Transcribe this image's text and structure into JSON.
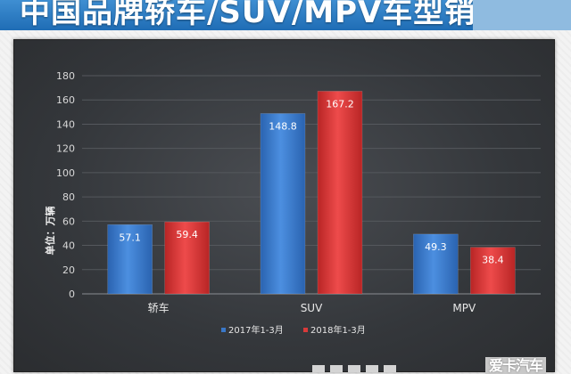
{
  "header": {
    "title": "中国品牌轿车/SUV/MPV车型销量"
  },
  "logo": {
    "text": "爱卡汽车"
  },
  "colors": {
    "series1": "#3a78c8",
    "series2": "#d83a3a",
    "banner": "#2a7bc4",
    "panel": "#3b3e42"
  },
  "chart_data": {
    "type": "bar",
    "title": "",
    "xlabel": "",
    "ylabel": "单位：万辆",
    "ylim": [
      0,
      180
    ],
    "yticks": [
      0,
      20,
      40,
      60,
      80,
      100,
      120,
      140,
      160,
      180
    ],
    "categories": [
      "轿车",
      "SUV",
      "MPV"
    ],
    "series": [
      {
        "name": "2017年1-3月",
        "values": [
          57.1,
          148.8,
          49.3
        ]
      },
      {
        "name": "2018年1-3月",
        "values": [
          59.4,
          167.2,
          38.4
        ]
      }
    ],
    "grid": true,
    "legend": "bottom"
  }
}
